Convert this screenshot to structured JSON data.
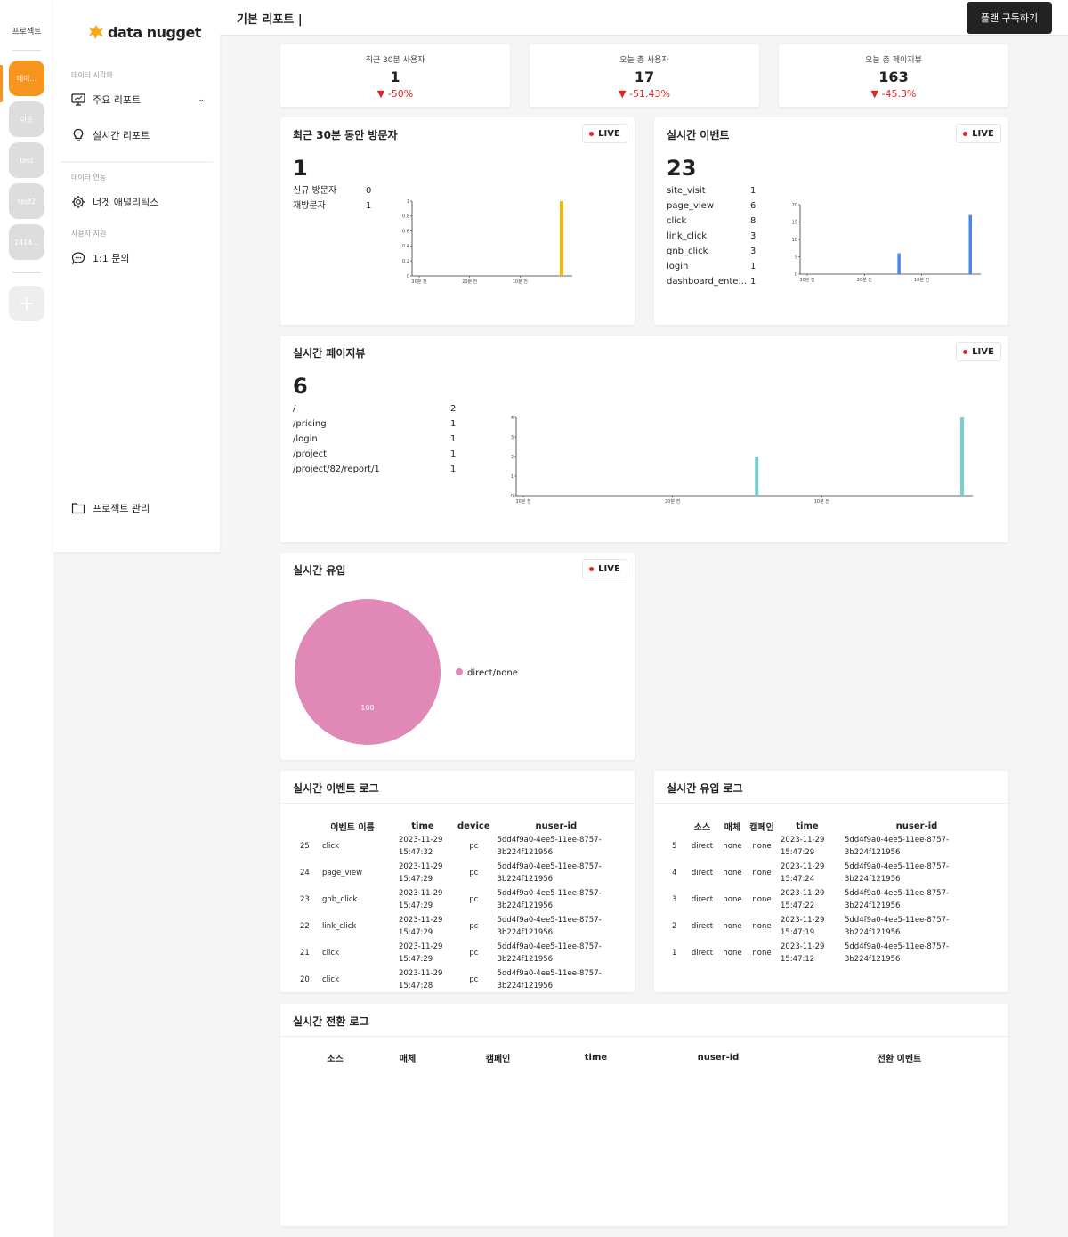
{
  "rail": {
    "title": "프로젝트",
    "projects": [
      "데이...",
      "이웃",
      "test",
      "test2",
      "1414..."
    ],
    "add": "+"
  },
  "sidebar": {
    "logo": "data nugget",
    "sections": {
      "viz": "데이터 시각화",
      "integration": "데이터 연동",
      "support": "사용자 지원"
    },
    "items": {
      "main_report": "주요 리포트",
      "realtime_report": "실시간 리포트",
      "analytics": "너겟 애널리틱스",
      "inquiry": "1:1 문의",
      "project_manage": "프로젝트 관리"
    }
  },
  "header": {
    "title": "기본 리포트",
    "plan_button": "플랜 구독하기"
  },
  "stats": [
    {
      "label": "최근 30분 사용자",
      "value": "1",
      "change": "-50%"
    },
    {
      "label": "오늘 총 사용자",
      "value": "17",
      "change": "-51.43%"
    },
    {
      "label": "오늘 총 페이지뷰",
      "value": "163",
      "change": "-45.3%"
    }
  ],
  "live_label": "LIVE",
  "visitors": {
    "title": "최근 30분 동안 방문자",
    "total": "1",
    "rows": [
      {
        "k": "신규 방문자",
        "v": "0"
      },
      {
        "k": "재방문자",
        "v": "1"
      }
    ]
  },
  "events": {
    "title": "실시간 이벤트",
    "total": "23",
    "rows": [
      {
        "k": "site_visit",
        "v": "1"
      },
      {
        "k": "page_view",
        "v": "6"
      },
      {
        "k": "click",
        "v": "8"
      },
      {
        "k": "link_click",
        "v": "3"
      },
      {
        "k": "gnb_click",
        "v": "3"
      },
      {
        "k": "login",
        "v": "1"
      },
      {
        "k": "dashboard_ente...",
        "v": "1"
      }
    ]
  },
  "pageviews": {
    "title": "실시간 페이지뷰",
    "total": "6",
    "rows": [
      {
        "k": "/",
        "v": "2"
      },
      {
        "k": "/pricing",
        "v": "1"
      },
      {
        "k": "/login",
        "v": "1"
      },
      {
        "k": "/project",
        "v": "1"
      },
      {
        "k": "/project/82/report/1",
        "v": "1"
      }
    ]
  },
  "inflow": {
    "title": "실시간 유입",
    "legend": "direct/none",
    "slice_label": "100"
  },
  "chart_data": [
    {
      "type": "bar",
      "x": [
        0,
        30
      ],
      "x_domain": [
        0,
        30
      ],
      "values": [
        0,
        1
      ],
      "xticks": [
        "30분 전",
        "20분 전",
        "10분 전"
      ],
      "yticks": [
        "0",
        "0.2",
        "0.4",
        "0.6",
        "0.8",
        "1"
      ],
      "ylim": [
        0,
        1
      ],
      "color": "#f5b800"
    },
    {
      "type": "bar",
      "x": [
        17,
        30
      ],
      "x_domain": [
        0,
        30
      ],
      "values": [
        6,
        17
      ],
      "xticks": [
        "30분 전",
        "20분 전",
        "10분 전"
      ],
      "yticks": [
        "0",
        "5",
        "10",
        "15",
        "20"
      ],
      "ylim": [
        0,
        20
      ],
      "color": "#4a86e8"
    },
    {
      "type": "bar",
      "x": [
        16,
        30
      ],
      "x_domain": [
        0,
        30
      ],
      "values": [
        2,
        4
      ],
      "xticks": [
        "30분 전",
        "20분 전",
        "10분 전"
      ],
      "yticks": [
        "0",
        "1",
        "2",
        "3",
        "4"
      ],
      "ylim": [
        0,
        4
      ],
      "color": "#76cfcf"
    },
    {
      "type": "pie",
      "categories": [
        "direct/none"
      ],
      "values": [
        100
      ],
      "color": "#e088b6"
    }
  ],
  "event_log": {
    "title": "실시간 이벤트 로그",
    "columns": [
      "이벤트 이름",
      "time",
      "device",
      "nuser-id"
    ],
    "rows": [
      {
        "n": "25",
        "name": "click",
        "time": "2023-11-29 15:47:32",
        "device": "pc",
        "uid": "5dd4f9a0-4ee5-11ee-8757-3b224f121956"
      },
      {
        "n": "24",
        "name": "page_view",
        "time": "2023-11-29 15:47:29",
        "device": "pc",
        "uid": "5dd4f9a0-4ee5-11ee-8757-3b224f121956"
      },
      {
        "n": "23",
        "name": "gnb_click",
        "time": "2023-11-29 15:47:29",
        "device": "pc",
        "uid": "5dd4f9a0-4ee5-11ee-8757-3b224f121956"
      },
      {
        "n": "22",
        "name": "link_click",
        "time": "2023-11-29 15:47:29",
        "device": "pc",
        "uid": "5dd4f9a0-4ee5-11ee-8757-3b224f121956"
      },
      {
        "n": "21",
        "name": "click",
        "time": "2023-11-29 15:47:29",
        "device": "pc",
        "uid": "5dd4f9a0-4ee5-11ee-8757-3b224f121956"
      },
      {
        "n": "20",
        "name": "click",
        "time": "2023-11-29 15:47:28",
        "device": "pc",
        "uid": "5dd4f9a0-4ee5-11ee-8757-3b224f121956"
      }
    ]
  },
  "inflow_log": {
    "title": "실시간 유입 로그",
    "columns": [
      "소스",
      "매체",
      "캠페인",
      "time",
      "nuser-id"
    ],
    "rows": [
      {
        "n": "5",
        "src": "direct",
        "med": "none",
        "camp": "none",
        "time": "2023-11-29 15:47:29",
        "uid": "5dd4f9a0-4ee5-11ee-8757-3b224f121956"
      },
      {
        "n": "4",
        "src": "direct",
        "med": "none",
        "camp": "none",
        "time": "2023-11-29 15:47:24",
        "uid": "5dd4f9a0-4ee5-11ee-8757-3b224f121956"
      },
      {
        "n": "3",
        "src": "direct",
        "med": "none",
        "camp": "none",
        "time": "2023-11-29 15:47:22",
        "uid": "5dd4f9a0-4ee5-11ee-8757-3b224f121956"
      },
      {
        "n": "2",
        "src": "direct",
        "med": "none",
        "camp": "none",
        "time": "2023-11-29 15:47:19",
        "uid": "5dd4f9a0-4ee5-11ee-8757-3b224f121956"
      },
      {
        "n": "1",
        "src": "direct",
        "med": "none",
        "camp": "none",
        "time": "2023-11-29 15:47:12",
        "uid": "5dd4f9a0-4ee5-11ee-8757-3b224f121956"
      }
    ]
  },
  "conversion_log": {
    "title": "실시간 전환 로그",
    "columns": [
      "소스",
      "매체",
      "캠페인",
      "time",
      "nuser-id",
      "전환 이벤트"
    ]
  }
}
